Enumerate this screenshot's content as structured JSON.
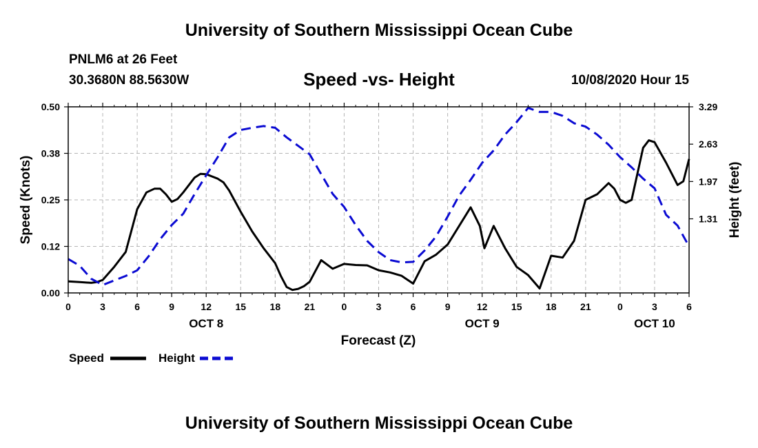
{
  "page": {
    "title_top": "University of Southern Mississippi Ocean Cube",
    "title_bottom": "University of Southern Mississippi Ocean Cube",
    "station": "PNLM6 at 26 Feet",
    "coords": "30.3680N 88.5630W",
    "subtitle": "Speed -vs- Height",
    "datetime": "10/08/2020 Hour 15"
  },
  "colors": {
    "speed": "#000000",
    "height": "#0a0ad2",
    "grid": "#b4b4b4"
  },
  "chart_data": {
    "type": "line",
    "title": "Speed -vs- Height",
    "xlabel": "Forecast (Z)",
    "ylabel_left": "Speed (Knots)",
    "ylabel_right": "Height (feet)",
    "x_range": [
      0,
      54
    ],
    "x_tick_labels": [
      "0",
      "3",
      "6",
      "9",
      "12",
      "15",
      "18",
      "21",
      "0",
      "3",
      "6",
      "9",
      "12",
      "15",
      "18",
      "21",
      "0",
      "3",
      "6"
    ],
    "day_labels": [
      {
        "label": "OCT 8",
        "x": 12
      },
      {
        "label": "OCT 9",
        "x": 36
      },
      {
        "label": "OCT 10",
        "x": 51
      }
    ],
    "y_left": {
      "range": [
        0,
        0.5
      ],
      "ticks": [
        0,
        0.125,
        0.25,
        0.375,
        0.5
      ],
      "tick_labels": [
        "0.00",
        "0.12",
        "0.25",
        "0.38",
        "0.50"
      ]
    },
    "y_right": {
      "range": [
        0,
        3.29
      ],
      "ticks": [
        1.31,
        1.97,
        2.63,
        3.29
      ],
      "tick_labels": [
        "1.31",
        "1.97",
        "2.63",
        "3.29"
      ]
    },
    "legend": [
      {
        "name": "Speed",
        "style": "solid"
      },
      {
        "name": "Height",
        "style": "dashed"
      }
    ],
    "series": [
      {
        "name": "Speed",
        "axis": "left",
        "style": "solid",
        "points": [
          [
            0,
            0.031
          ],
          [
            1,
            0.029
          ],
          [
            2,
            0.027
          ],
          [
            2.5,
            0.029
          ],
          [
            3,
            0.035
          ],
          [
            4,
            0.07
          ],
          [
            5,
            0.11
          ],
          [
            6,
            0.225
          ],
          [
            6.8,
            0.27
          ],
          [
            7.5,
            0.28
          ],
          [
            8,
            0.28
          ],
          [
            8.5,
            0.265
          ],
          [
            9,
            0.245
          ],
          [
            9.5,
            0.252
          ],
          [
            10,
            0.27
          ],
          [
            11,
            0.31
          ],
          [
            11.5,
            0.32
          ],
          [
            12,
            0.319
          ],
          [
            13,
            0.307
          ],
          [
            13.5,
            0.297
          ],
          [
            14,
            0.275
          ],
          [
            15,
            0.218
          ],
          [
            16,
            0.165
          ],
          [
            17,
            0.12
          ],
          [
            18,
            0.08
          ],
          [
            18.5,
            0.045
          ],
          [
            19,
            0.016
          ],
          [
            19.5,
            0.008
          ],
          [
            20,
            0.011
          ],
          [
            20.5,
            0.018
          ],
          [
            21,
            0.03
          ],
          [
            22,
            0.088
          ],
          [
            23,
            0.065
          ],
          [
            24,
            0.078
          ],
          [
            25,
            0.075
          ],
          [
            26,
            0.074
          ],
          [
            27,
            0.061
          ],
          [
            28,
            0.055
          ],
          [
            29,
            0.046
          ],
          [
            30,
            0.025
          ],
          [
            31,
            0.085
          ],
          [
            32,
            0.103
          ],
          [
            33,
            0.13
          ],
          [
            34,
            0.18
          ],
          [
            35,
            0.23
          ],
          [
            35.8,
            0.18
          ],
          [
            36.2,
            0.12
          ],
          [
            37,
            0.18
          ],
          [
            38,
            0.12
          ],
          [
            39,
            0.07
          ],
          [
            40,
            0.048
          ],
          [
            41,
            0.012
          ],
          [
            42,
            0.1
          ],
          [
            43,
            0.095
          ],
          [
            44,
            0.14
          ],
          [
            45,
            0.25
          ],
          [
            46,
            0.265
          ],
          [
            47,
            0.295
          ],
          [
            47.5,
            0.28
          ],
          [
            48,
            0.25
          ],
          [
            48.5,
            0.242
          ],
          [
            49,
            0.25
          ],
          [
            50,
            0.39
          ],
          [
            50.5,
            0.41
          ],
          [
            51,
            0.405
          ],
          [
            52,
            0.35
          ],
          [
            53,
            0.29
          ],
          [
            53.5,
            0.3
          ],
          [
            54,
            0.36
          ]
        ]
      },
      {
        "name": "Height",
        "axis": "right",
        "style": "dashed",
        "points": [
          [
            0,
            0.6
          ],
          [
            1,
            0.48
          ],
          [
            2,
            0.25
          ],
          [
            3,
            0.14
          ],
          [
            4,
            0.22
          ],
          [
            5,
            0.3
          ],
          [
            6,
            0.4
          ],
          [
            7,
            0.65
          ],
          [
            8,
            0.95
          ],
          [
            9,
            1.2
          ],
          [
            10,
            1.4
          ],
          [
            11,
            1.75
          ],
          [
            12,
            2.08
          ],
          [
            13,
            2.4
          ],
          [
            14,
            2.75
          ],
          [
            15,
            2.88
          ],
          [
            16,
            2.92
          ],
          [
            17,
            2.95
          ],
          [
            18,
            2.92
          ],
          [
            19,
            2.75
          ],
          [
            20,
            2.6
          ],
          [
            21,
            2.45
          ],
          [
            22,
            2.1
          ],
          [
            23,
            1.75
          ],
          [
            24,
            1.52
          ],
          [
            25,
            1.2
          ],
          [
            26,
            0.92
          ],
          [
            27,
            0.72
          ],
          [
            28,
            0.58
          ],
          [
            29,
            0.54
          ],
          [
            30,
            0.55
          ],
          [
            31,
            0.75
          ],
          [
            32,
            1.0
          ],
          [
            33,
            1.35
          ],
          [
            34,
            1.72
          ],
          [
            35,
            2.0
          ],
          [
            36,
            2.3
          ],
          [
            37,
            2.52
          ],
          [
            38,
            2.8
          ],
          [
            39,
            3.02
          ],
          [
            40,
            3.27
          ],
          [
            41,
            3.2
          ],
          [
            42,
            3.2
          ],
          [
            43,
            3.13
          ],
          [
            44,
            3.0
          ],
          [
            45,
            2.94
          ],
          [
            46,
            2.8
          ],
          [
            47,
            2.62
          ],
          [
            48,
            2.4
          ],
          [
            49,
            2.22
          ],
          [
            50,
            2.02
          ],
          [
            51,
            1.85
          ],
          [
            52,
            1.38
          ],
          [
            53,
            1.19
          ],
          [
            54,
            0.82
          ]
        ]
      }
    ]
  }
}
